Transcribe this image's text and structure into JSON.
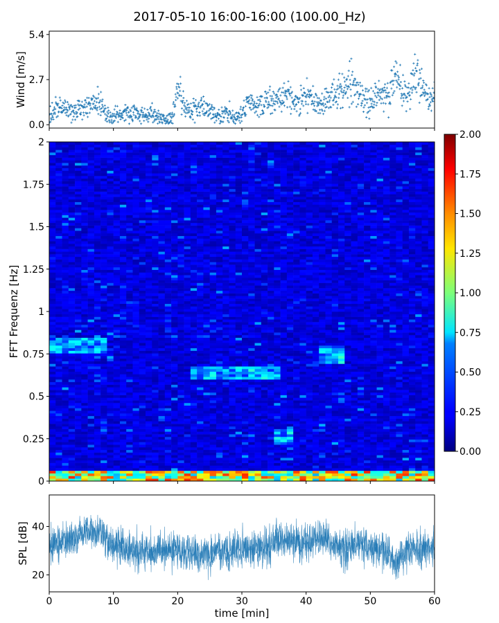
{
  "figure": {
    "title": "2017-05-10 16:00-16:00 (100.00_Hz)"
  },
  "chart_data": [
    {
      "type": "scatter",
      "panel": "wind",
      "ylabel": "Wind [m/s]",
      "xlabel": "",
      "xlim": [
        0,
        60
      ],
      "ylim": [
        -0.2,
        5.6
      ],
      "yticks": [
        "0.0",
        "2.7",
        "5.4"
      ],
      "xticks": [
        0,
        10,
        20,
        30,
        40,
        50,
        60
      ],
      "show_xtick_labels": false,
      "marker": "+",
      "color": "#1f77b4",
      "series": [
        {
          "x": [
            0,
            1,
            2,
            3,
            4,
            5,
            6,
            7,
            8,
            9,
            10,
            11,
            12,
            13,
            14,
            15,
            16,
            17,
            18,
            19,
            20,
            21,
            22,
            23,
            24,
            25,
            26,
            27,
            28,
            29,
            30,
            31,
            32,
            33,
            34,
            35,
            36,
            37,
            38,
            39,
            40,
            41,
            42,
            43,
            44,
            45,
            46,
            47,
            48,
            49,
            50,
            51,
            52,
            53,
            54,
            55,
            56,
            57,
            58,
            59,
            60
          ],
          "values": [
            0.5,
            1.0,
            0.9,
            0.8,
            0.8,
            0.9,
            1.2,
            1.5,
            1.1,
            0.6,
            0.5,
            0.6,
            0.8,
            0.7,
            0.6,
            0.5,
            0.8,
            0.4,
            0.3,
            0.3,
            2.2,
            1.2,
            0.8,
            1.0,
            1.0,
            0.8,
            0.5,
            0.6,
            0.7,
            0.3,
            0.6,
            1.5,
            1.1,
            1.1,
            1.4,
            1.5,
            1.6,
            1.8,
            1.3,
            1.4,
            1.8,
            1.5,
            1.0,
            1.4,
            1.7,
            1.9,
            2.0,
            2.5,
            1.9,
            1.6,
            1.2,
            1.7,
            2.0,
            1.8,
            2.9,
            1.8,
            1.9,
            3.1,
            2.3,
            1.5,
            2.0
          ]
        }
      ]
    },
    {
      "type": "heatmap",
      "panel": "spectrogram",
      "ylabel": "FFT Frequenz [Hz]",
      "xlabel": "",
      "xlim": [
        0,
        60
      ],
      "ylim": [
        0,
        2
      ],
      "yticks": [
        "0",
        "0.25",
        "0.5",
        "0.75",
        "1",
        "1.25",
        "1.5",
        "1.75",
        "2"
      ],
      "colormap": "jet",
      "colorbar": {
        "min": 0,
        "max": 2,
        "ticks": [
          "0.00",
          "0.25",
          "0.50",
          "0.75",
          "1.00",
          "1.25",
          "1.50",
          "1.75",
          "2.00"
        ]
      },
      "typical_value": 0.15,
      "features": [
        {
          "desc": "low-frequency band",
          "freq_range": [
            0,
            0.06
          ],
          "level": 1.2
        },
        {
          "desc": "band near 0.25 Hz",
          "freq_range": [
            0.22,
            0.3
          ],
          "time_range": [
            35,
            38
          ],
          "level": 0.6
        },
        {
          "desc": "band near 0.62 Hz",
          "freq_range": [
            0.6,
            0.68
          ],
          "time_range": [
            22,
            36
          ],
          "level": 0.6
        },
        {
          "desc": "band near 0.8 Hz",
          "freq_range": [
            0.75,
            0.85
          ],
          "time_range": [
            0,
            9
          ],
          "level": 0.55
        },
        {
          "desc": "band near 0.78 Hz",
          "freq_range": [
            0.7,
            0.8
          ],
          "time_range": [
            42,
            46
          ],
          "level": 0.65
        }
      ]
    },
    {
      "type": "line",
      "panel": "spl",
      "ylabel": "SPL [dB]",
      "xlabel": "time [min]",
      "xlim": [
        0,
        60
      ],
      "ylim": [
        13,
        53
      ],
      "yticks": [
        "20",
        "40"
      ],
      "xticks": [
        "0",
        "10",
        "20",
        "30",
        "40",
        "50",
        "60"
      ],
      "color": "#1f77b4",
      "series": [
        {
          "x": [
            0,
            2,
            4,
            6,
            8,
            10,
            12,
            14,
            16,
            18,
            20,
            22,
            24,
            26,
            28,
            30,
            32,
            34,
            36,
            38,
            40,
            42,
            44,
            46,
            48,
            50,
            52,
            54,
            56,
            58,
            60
          ],
          "values": [
            34,
            33,
            35,
            38,
            36,
            33,
            31,
            30,
            29,
            31,
            31,
            29,
            28,
            30,
            30,
            31,
            31,
            31,
            35,
            34,
            32,
            36,
            33,
            30,
            33,
            31,
            30,
            25,
            31,
            30,
            31
          ],
          "band": 6
        }
      ]
    }
  ]
}
